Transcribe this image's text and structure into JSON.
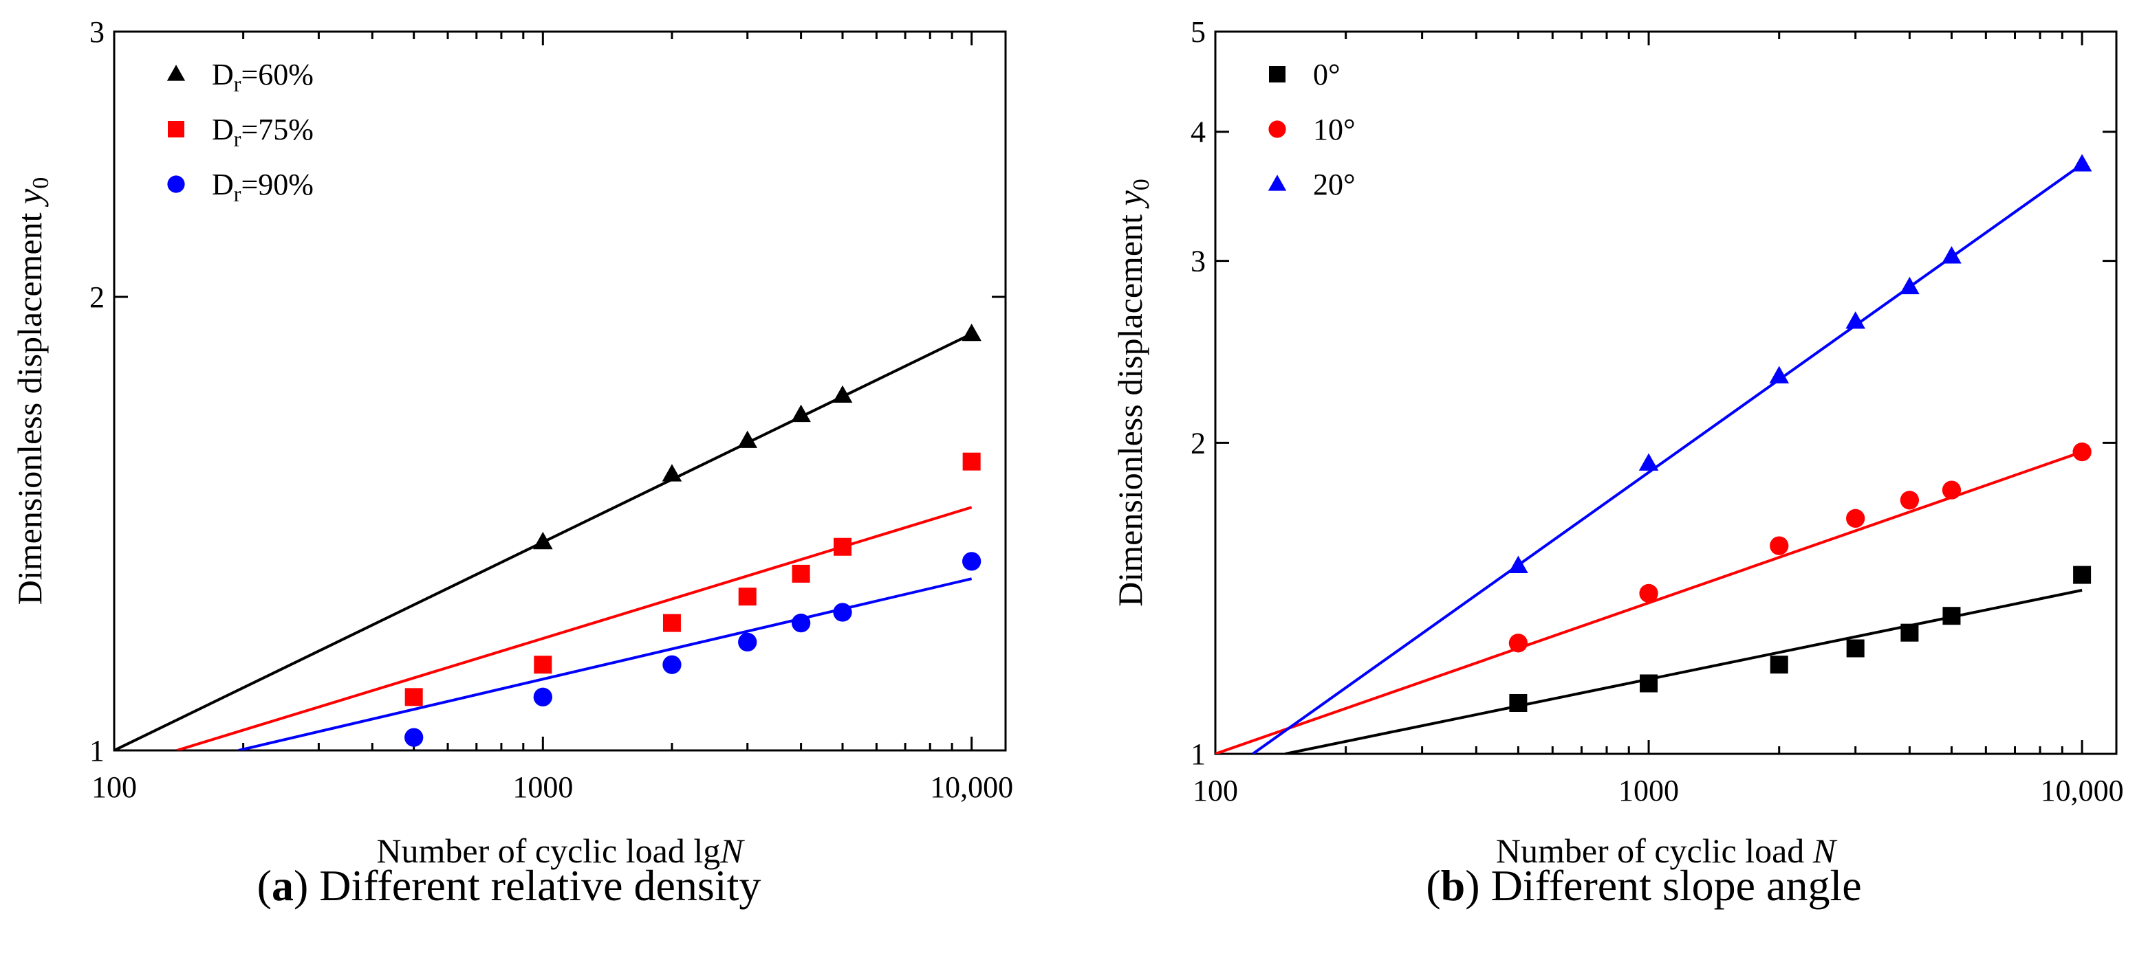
{
  "chart_data": [
    {
      "type": "scatter",
      "panel_label": "a",
      "caption": "Different relative density",
      "xlabel": "Number of cyclic load lg",
      "xlabel_var": "N",
      "ylabel": "Dimensionless displacement ",
      "ylabel_var": "y",
      "ylabel_sub": "0",
      "x_scale": "log",
      "y_scale": "log",
      "xlim": [
        100,
        12000
      ],
      "ylim": [
        1,
        3
      ],
      "x_ticks": [
        100,
        1000,
        10000
      ],
      "x_tick_labels": [
        "100",
        "1000",
        "10,000"
      ],
      "y_ticks": [
        1,
        2,
        3
      ],
      "y_tick_labels": [
        "1",
        "2",
        "3"
      ],
      "legend_position": "top-left",
      "series": [
        {
          "name": "Dr=60%",
          "legend_main": "D",
          "legend_sub": "r",
          "legend_rest": "=60%",
          "color": "#000000",
          "marker": "triangle",
          "x": [
            1000,
            2000,
            3000,
            4000,
            5000,
            10000
          ],
          "y": [
            1.375,
            1.525,
            1.605,
            1.67,
            1.72,
            1.89
          ],
          "fit": {
            "x": [
              100,
              10000
            ],
            "y": [
              1.0,
              1.89
            ]
          }
        },
        {
          "name": "Dr=75%",
          "legend_main": "D",
          "legend_sub": "r",
          "legend_rest": "=75%",
          "color": "#ff0000",
          "marker": "square",
          "x": [
            500,
            1000,
            2000,
            3000,
            4000,
            5000,
            10000
          ],
          "y": [
            1.085,
            1.14,
            1.215,
            1.265,
            1.31,
            1.365,
            1.555
          ],
          "fit": {
            "x": [
              140,
              10000
            ],
            "y": [
              1.0,
              1.45
            ]
          }
        },
        {
          "name": "Dr=90%",
          "legend_main": "D",
          "legend_sub": "r",
          "legend_rest": "=90%",
          "color": "#0000ff",
          "marker": "circle",
          "x": [
            500,
            1000,
            2000,
            3000,
            4000,
            5000,
            10000
          ],
          "y": [
            1.02,
            1.085,
            1.14,
            1.18,
            1.215,
            1.235,
            1.335
          ],
          "fit": {
            "x": [
              195,
              10000
            ],
            "y": [
              1.0,
              1.3
            ]
          }
        }
      ]
    },
    {
      "type": "scatter",
      "panel_label": "b",
      "caption": "Different slope angle",
      "xlabel": "Number of cyclic load  ",
      "xlabel_var": "N",
      "ylabel": "Dimensionless displacement ",
      "ylabel_var": "y",
      "ylabel_sub": "0",
      "x_scale": "log",
      "y_scale": "log",
      "xlim": [
        100,
        12000
      ],
      "ylim": [
        1,
        5
      ],
      "x_ticks": [
        100,
        1000,
        10000
      ],
      "x_tick_labels": [
        "100",
        "1000",
        "10,000"
      ],
      "y_ticks": [
        1,
        2,
        3,
        4,
        5
      ],
      "y_tick_labels": [
        "1",
        "2",
        "3",
        "4",
        "5"
      ],
      "legend_position": "top-left",
      "series": [
        {
          "name": "0°",
          "legend_main": " 0°",
          "legend_sub": "",
          "legend_rest": "",
          "color": "#000000",
          "marker": "square",
          "x": [
            500,
            1000,
            2000,
            3000,
            4000,
            5000,
            10000
          ],
          "y": [
            1.12,
            1.17,
            1.22,
            1.265,
            1.31,
            1.36,
            1.49
          ],
          "fit": {
            "x": [
              145,
              10000
            ],
            "y": [
              1.0,
              1.44
            ]
          }
        },
        {
          "name": "10°",
          "legend_main": "10°",
          "legend_sub": "",
          "legend_rest": "",
          "color": "#ff0000",
          "marker": "circle",
          "x": [
            500,
            1000,
            2000,
            3000,
            4000,
            5000,
            10000
          ],
          "y": [
            1.28,
            1.43,
            1.59,
            1.69,
            1.76,
            1.8,
            1.96
          ],
          "fit": {
            "x": [
              100,
              10000
            ],
            "y": [
              1.0,
              1.96
            ]
          }
        },
        {
          "name": "20°",
          "legend_main": "20°",
          "legend_sub": "",
          "legend_rest": "",
          "color": "#0000ff",
          "marker": "triangle",
          "x": [
            500,
            1000,
            2000,
            3000,
            4000,
            5000,
            10000
          ],
          "y": [
            1.52,
            1.91,
            2.32,
            2.62,
            2.83,
            3.03,
            3.72
          ],
          "fit": {
            "x": [
              122,
              10000
            ],
            "y": [
              1.0,
              3.72
            ]
          }
        }
      ]
    }
  ]
}
